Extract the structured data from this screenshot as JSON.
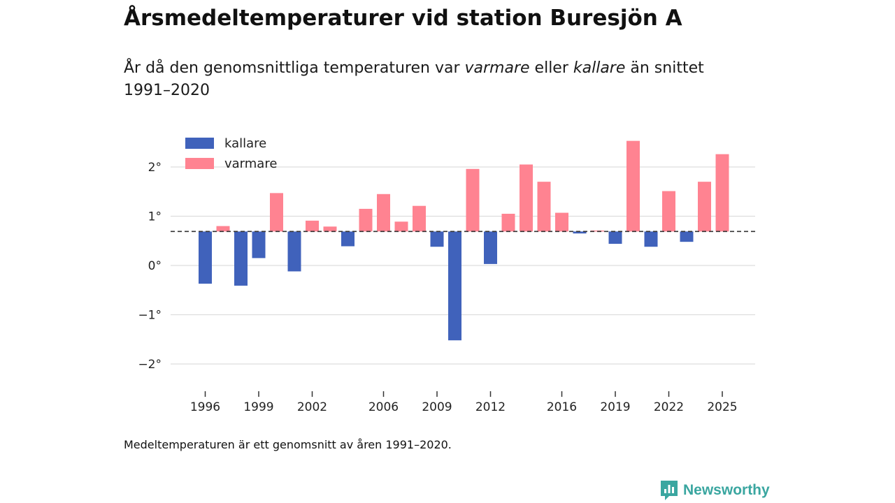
{
  "title": "Årsmedeltemperaturer vid station Buresjön A",
  "subtitle": {
    "part1": "År då den genomsnittliga temperaturen var ",
    "warm_word": "varmare",
    "part2": " eller ",
    "cold_word": "kallare",
    "part3": " än snittet 1991–2020"
  },
  "footnote": "Medeltemperaturen är ett genomsnitt av åren 1991–2020.",
  "brand": {
    "name": "Newsworthy",
    "icon": "newsworthy-logo-icon",
    "color": "#3aa6a0"
  },
  "colors": {
    "kallare": "#4062bb",
    "varmare": "#ff8391",
    "grid": "#dddddd",
    "baseline": "#333333"
  },
  "chart_data": {
    "type": "bar",
    "title": "Årsmedeltemperaturer vid station Buresjön A",
    "xlabel": "",
    "ylabel": "",
    "baseline": 0.69,
    "ylim": [
      -2.5,
      2.9
    ],
    "yticks": [
      {
        "value": 2,
        "label": "2°"
      },
      {
        "value": 1,
        "label": "1°"
      },
      {
        "value": 0,
        "label": "0°"
      },
      {
        "value": -1,
        "label": "−1°"
      },
      {
        "value": -2,
        "label": "−2°"
      }
    ],
    "xticks": [
      1996,
      1999,
      2002,
      2006,
      2009,
      2012,
      2016,
      2019,
      2022,
      2025
    ],
    "legend": {
      "position": "top-left",
      "items": [
        {
          "key": "kallare",
          "label": "kallare"
        },
        {
          "key": "varmare",
          "label": "varmare"
        }
      ]
    },
    "categories": [
      1996,
      1997,
      1998,
      1999,
      2000,
      2001,
      2002,
      2003,
      2004,
      2005,
      2006,
      2007,
      2008,
      2009,
      2010,
      2011,
      2012,
      2013,
      2014,
      2015,
      2016,
      2017,
      2018,
      2019,
      2020,
      2021,
      2022,
      2023,
      2024,
      2025
    ],
    "values": [
      -0.37,
      0.8,
      -0.41,
      0.15,
      1.47,
      -0.12,
      0.91,
      0.79,
      0.39,
      1.15,
      1.45,
      0.89,
      1.21,
      0.38,
      -1.52,
      1.96,
      0.03,
      1.05,
      2.05,
      1.7,
      1.07,
      0.65,
      0.71,
      0.44,
      2.53,
      0.38,
      1.51,
      0.48,
      1.7,
      2.26
    ]
  }
}
